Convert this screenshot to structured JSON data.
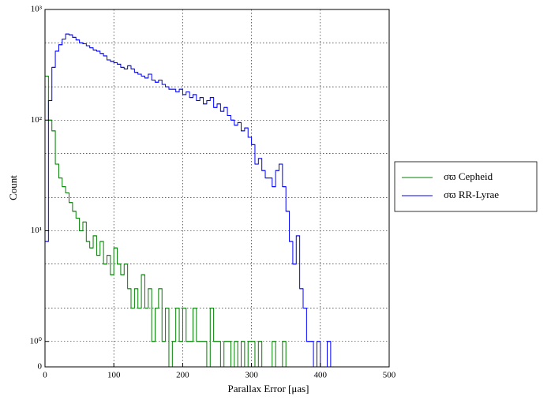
{
  "chart_data": {
    "type": "histogram",
    "xlabel": "Parallax Error [μas]",
    "ylabel": "Count",
    "bins": [
      0,
      5,
      10,
      15,
      20,
      25,
      30,
      35,
      40,
      45,
      50,
      55,
      60,
      65,
      70,
      75,
      80,
      85,
      90,
      95,
      100,
      105,
      110,
      115,
      120,
      125,
      130,
      135,
      140,
      145,
      150,
      155,
      160,
      165,
      170,
      175,
      180,
      185,
      190,
      195,
      200,
      205,
      210,
      215,
      220,
      225,
      230,
      235,
      240,
      245,
      250,
      255,
      260,
      265,
      270,
      275,
      280,
      285,
      290,
      295,
      300,
      305,
      310,
      315,
      320,
      325,
      330,
      335,
      340,
      345,
      350,
      355,
      360,
      365,
      370,
      375,
      380,
      385,
      390,
      395,
      400,
      405,
      410,
      415,
      420,
      425,
      430,
      435,
      440,
      445,
      450,
      455,
      460,
      465,
      470,
      475,
      480,
      485,
      490,
      495,
      500
    ],
    "series": [
      {
        "name": "σϖ Cepheid",
        "color": "#008000",
        "values": [
          250,
          100,
          80,
          40,
          30,
          25,
          22,
          18,
          15,
          13,
          10,
          12,
          8,
          7,
          9,
          6,
          8,
          5,
          6,
          4,
          7,
          5,
          4,
          5,
          3,
          2,
          3,
          2,
          4,
          2,
          3,
          1,
          2,
          3,
          1,
          2,
          0,
          1,
          2,
          1,
          2,
          1,
          1,
          2,
          1,
          1,
          1,
          0,
          2,
          1,
          1,
          0,
          1,
          1,
          0,
          1,
          0,
          1,
          0,
          1,
          1,
          0,
          1,
          0,
          0,
          0,
          1,
          0,
          0,
          1,
          0,
          0,
          0,
          0,
          0,
          0,
          0,
          0,
          0,
          0,
          0,
          0,
          0,
          0,
          0,
          0,
          0,
          0,
          0,
          0,
          0,
          0,
          0,
          0,
          0,
          0,
          0,
          0,
          0,
          0
        ]
      },
      {
        "name": "σϖ RR-Lyrae",
        "color": "#0000ff",
        "values": [
          8,
          150,
          300,
          420,
          480,
          540,
          600,
          590,
          560,
          530,
          500,
          490,
          470,
          450,
          430,
          420,
          400,
          380,
          350,
          340,
          330,
          320,
          300,
          290,
          310,
          290,
          270,
          260,
          250,
          240,
          260,
          230,
          220,
          230,
          210,
          200,
          190,
          190,
          180,
          190,
          170,
          180,
          160,
          170,
          150,
          160,
          140,
          150,
          160,
          130,
          140,
          120,
          130,
          110,
          100,
          90,
          95,
          80,
          85,
          70,
          60,
          40,
          45,
          35,
          30,
          30,
          25,
          35,
          40,
          25,
          15,
          8,
          5,
          9,
          3,
          2,
          1,
          1,
          0,
          1,
          0,
          0,
          1,
          0,
          0,
          0,
          0,
          0,
          0,
          0,
          0,
          0,
          0,
          0,
          0,
          0,
          0,
          0,
          0,
          0
        ]
      }
    ],
    "xlim": [
      0,
      500
    ],
    "xticks": [
      0,
      100,
      200,
      300,
      400,
      500
    ],
    "yscale": "symlog",
    "linthresh": 1,
    "linscale": 0.23,
    "ylim": [
      0,
      1000
    ],
    "yticks": [
      0,
      {
        "value": 1,
        "label": "10⁰"
      },
      {
        "value": 10,
        "label": "10¹"
      },
      {
        "value": 100,
        "label": "10²"
      },
      {
        "value": 1000,
        "label": "10³"
      }
    ],
    "grid": true,
    "minor_gridlines": [
      2,
      5,
      20,
      50,
      200,
      500
    ],
    "legend": "right outside"
  }
}
